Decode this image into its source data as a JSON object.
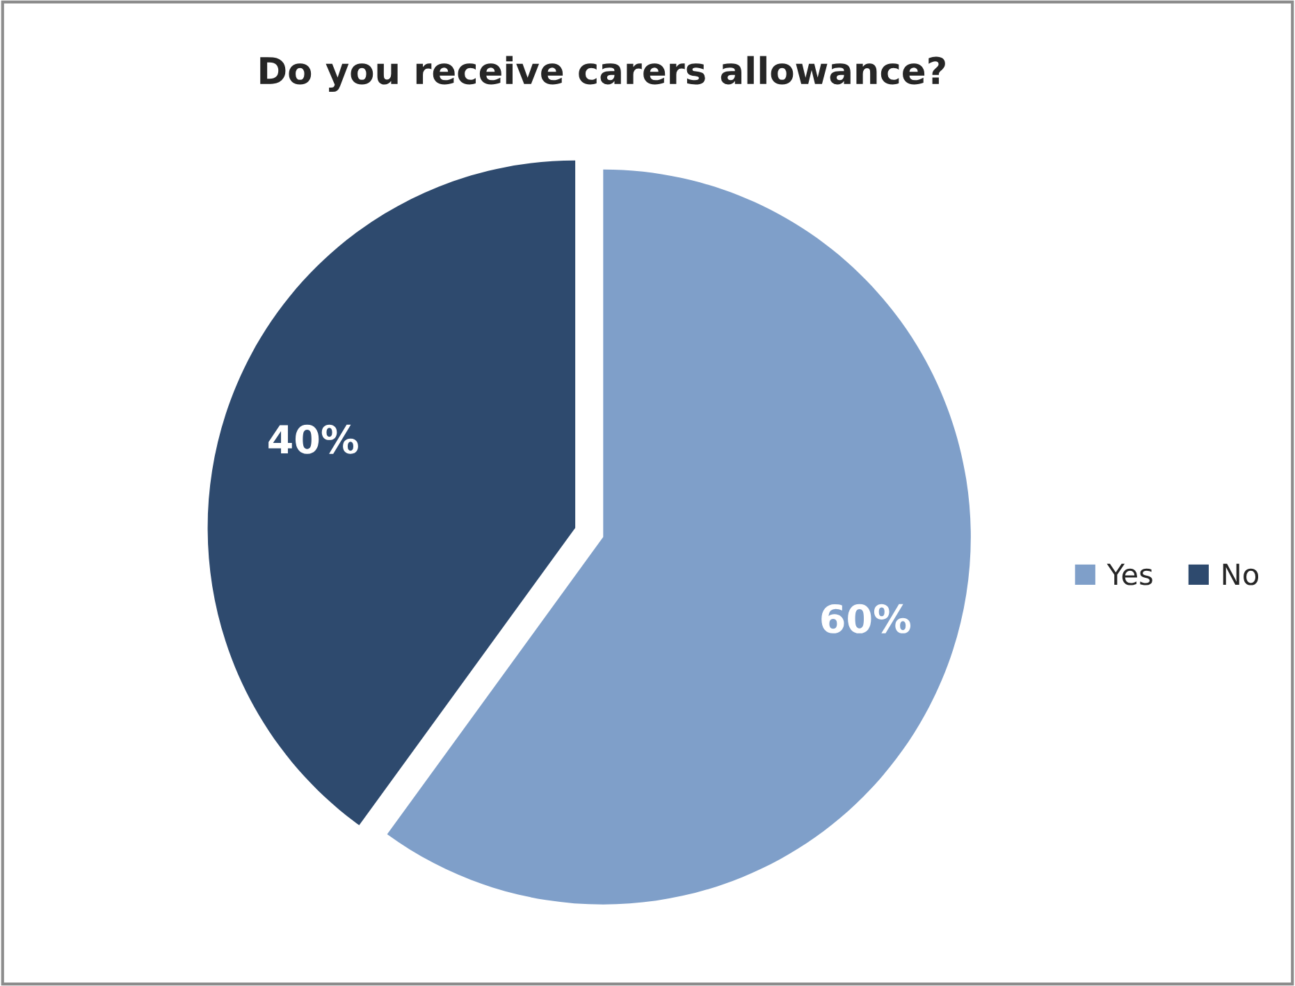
{
  "chart_data": {
    "type": "pie",
    "title": "Do you receive carers allowance?",
    "categories": [
      "Yes",
      "No"
    ],
    "values": [
      60,
      40
    ],
    "colors": [
      "#7f9fc9",
      "#2e4a6e"
    ],
    "value_labels": [
      "60%",
      "40%"
    ],
    "legend": "right"
  }
}
